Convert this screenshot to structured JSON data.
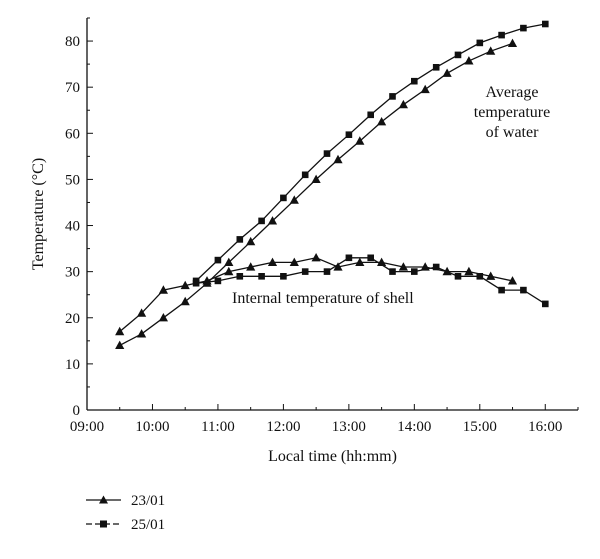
{
  "chart_data": {
    "type": "line",
    "title": "",
    "xlabel": "Local time (hh:mm)",
    "ylabel": "Temperature (°C)",
    "xlim": [
      "09:00",
      "16:30"
    ],
    "ylim": [
      0,
      85
    ],
    "x_ticks": [
      "09:00",
      "10:00",
      "11:00",
      "12:00",
      "13:00",
      "14:00",
      "15:00",
      "16:00"
    ],
    "y_ticks": [
      0,
      10,
      20,
      30,
      40,
      50,
      60,
      70,
      80
    ],
    "grid": false,
    "legend_position": "bottom-left",
    "annotations": [
      {
        "line1": "Average",
        "line2": "temperature",
        "line3": "of water"
      },
      {
        "text": "Internal temperature of shell"
      }
    ],
    "series": [
      {
        "name": "23/01",
        "marker": "triangle",
        "lines": [
          {
            "x": [
              "09:30",
              "09:50",
              "10:10",
              "10:30",
              "10:50",
              "11:10",
              "11:30",
              "11:50",
              "12:10",
              "12:30",
              "12:50",
              "13:10",
              "13:30",
              "13:50",
              "14:10",
              "14:30",
              "14:50",
              "15:10",
              "15:30"
            ],
            "y": [
              14,
              16.5,
              20,
              23.5,
              27.5,
              32,
              36.5,
              41,
              45.5,
              50,
              54.3,
              58.3,
              62.5,
              66.2,
              69.5,
              73,
              75.7,
              77.8,
              79.5
            ]
          },
          {
            "x": [
              "09:30",
              "09:50",
              "10:10",
              "10:30",
              "10:50",
              "11:10",
              "11:30",
              "11:50",
              "12:10",
              "12:30",
              "12:50",
              "13:10",
              "13:30",
              "13:50",
              "14:10",
              "14:30",
              "14:50",
              "15:10",
              "15:30"
            ],
            "y": [
              17,
              21,
              26,
              27,
              28,
              30,
              31,
              32,
              32,
              33,
              31,
              32,
              32,
              31,
              31,
              30,
              30,
              29,
              28
            ]
          }
        ]
      },
      {
        "name": "25/01",
        "marker": "square",
        "lines": [
          {
            "x": [
              "10:40",
              "11:00",
              "11:20",
              "11:40",
              "12:00",
              "12:20",
              "12:40",
              "13:00",
              "13:20",
              "13:40",
              "14:00",
              "14:20",
              "14:40",
              "15:00",
              "15:20",
              "15:40",
              "16:00"
            ],
            "y": [
              28,
              32.5,
              37,
              41,
              46,
              51,
              55.6,
              59.7,
              64,
              68,
              71.3,
              74.3,
              77,
              79.6,
              81.3,
              82.8,
              83.7
            ]
          },
          {
            "x": [
              "10:40",
              "11:00",
              "11:20",
              "11:40",
              "12:00",
              "12:20",
              "12:40",
              "13:00",
              "13:20",
              "13:40",
              "14:00",
              "14:20",
              "14:40",
              "15:00",
              "15:20",
              "15:40",
              "16:00"
            ],
            "y": [
              27.5,
              28,
              29,
              29,
              29,
              30,
              30,
              33,
              33,
              30,
              30,
              31,
              29,
              29,
              26,
              26,
              23
            ]
          }
        ]
      }
    ]
  },
  "legend": {
    "items": [
      {
        "label": "23/01"
      },
      {
        "label": "25/01"
      }
    ]
  }
}
